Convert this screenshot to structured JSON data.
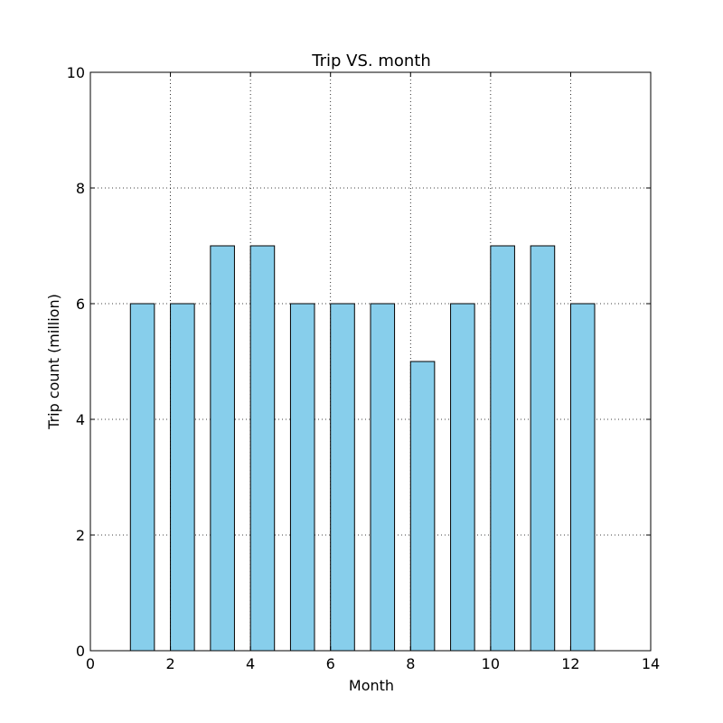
{
  "chart_data": {
    "type": "bar",
    "title": "Trip VS. month",
    "xlabel": "Month",
    "ylabel": "Trip count (million)",
    "x": [
      1,
      2,
      3,
      4,
      5,
      6,
      7,
      8,
      9,
      10,
      11,
      12
    ],
    "values": [
      6,
      6,
      7,
      7,
      6,
      6,
      6,
      5,
      6,
      7,
      7,
      6
    ],
    "bar_width": 0.6,
    "xlim": [
      0,
      14
    ],
    "ylim": [
      0,
      10
    ],
    "xticks": [
      "0",
      "2",
      "4",
      "6",
      "8",
      "10",
      "12",
      "14"
    ],
    "yticks": [
      "0",
      "2",
      "4",
      "6",
      "8",
      "10"
    ],
    "grid": true,
    "bar_color": "#87ceeb",
    "edge_color": "#000000"
  }
}
